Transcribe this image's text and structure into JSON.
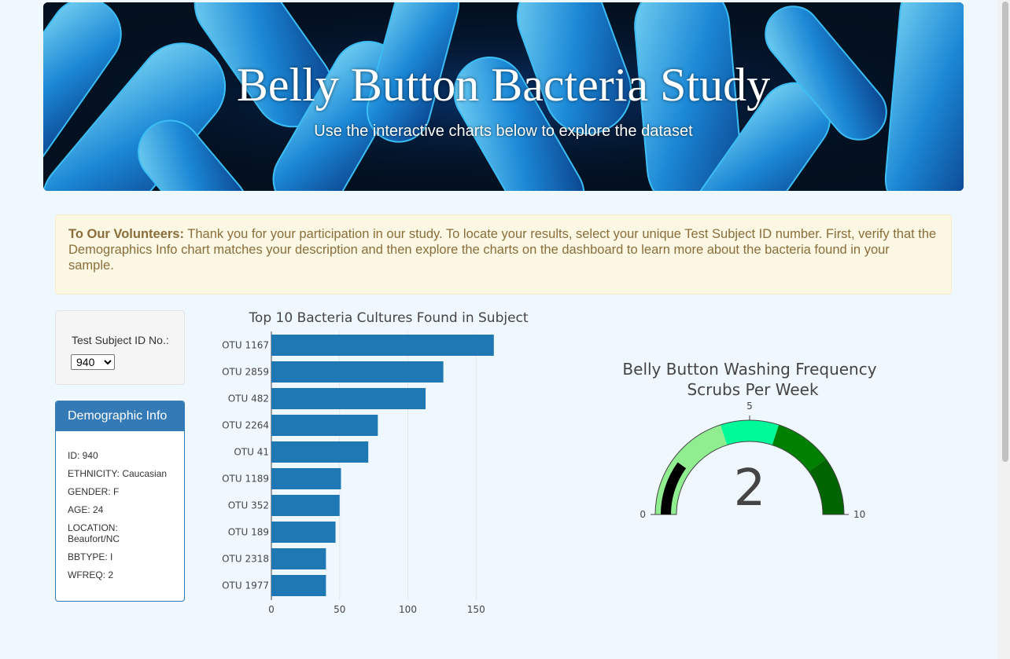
{
  "header": {
    "title": "Belly Button Bacteria Study",
    "subtitle": "Use the interactive charts below to explore the dataset"
  },
  "alert": {
    "heading": "To Our Volunteers:",
    "text": " Thank you for your participation in our study. To locate your results, select your unique Test Subject ID number. First, verify that the Demographics Info chart matches your description and then explore the charts on the dashboard to learn more about the bacteria found in your sample."
  },
  "selector": {
    "label": "Test Subject ID No.:",
    "selected": "940"
  },
  "demographics": {
    "heading": "Demographic Info",
    "lines": [
      "ID: 940",
      "ETHNICITY: Caucasian",
      "GENDER: F",
      "AGE: 24",
      "LOCATION: Beaufort/NC",
      "BBTYPE: I",
      "WFREQ: 2"
    ]
  },
  "colors": {
    "bar": "#1f77b4",
    "panel": "#337ab7",
    "gauge_needle": "#000000",
    "gauge_steps": [
      "#90ee90",
      "#00fa9a",
      "#008000",
      "#006400"
    ]
  },
  "chart_data": [
    {
      "type": "bar",
      "orientation": "horizontal",
      "title": "Top 10 Bacteria Cultures Found in Subject",
      "categories": [
        "OTU 1167",
        "OTU 2859",
        "OTU 482",
        "OTU 2264",
        "OTU 41",
        "OTU 1189",
        "OTU 352",
        "OTU 189",
        "OTU 2318",
        "OTU 1977"
      ],
      "values": [
        163,
        126,
        113,
        78,
        71,
        51,
        50,
        47,
        40,
        40
      ],
      "xticks": [
        "0",
        "50",
        "100",
        "150"
      ],
      "xlim": [
        0,
        175
      ]
    },
    {
      "type": "gauge",
      "title": "Belly Button Washing Frequency",
      "subtitle": "Scrubs Per Week",
      "value": 2,
      "value_label": "2",
      "range": [
        0,
        10
      ],
      "ticks": [
        "0",
        "5",
        "10"
      ],
      "steps": [
        [
          0,
          4
        ],
        [
          4,
          6
        ],
        [
          6,
          8
        ],
        [
          8,
          10
        ]
      ]
    }
  ]
}
